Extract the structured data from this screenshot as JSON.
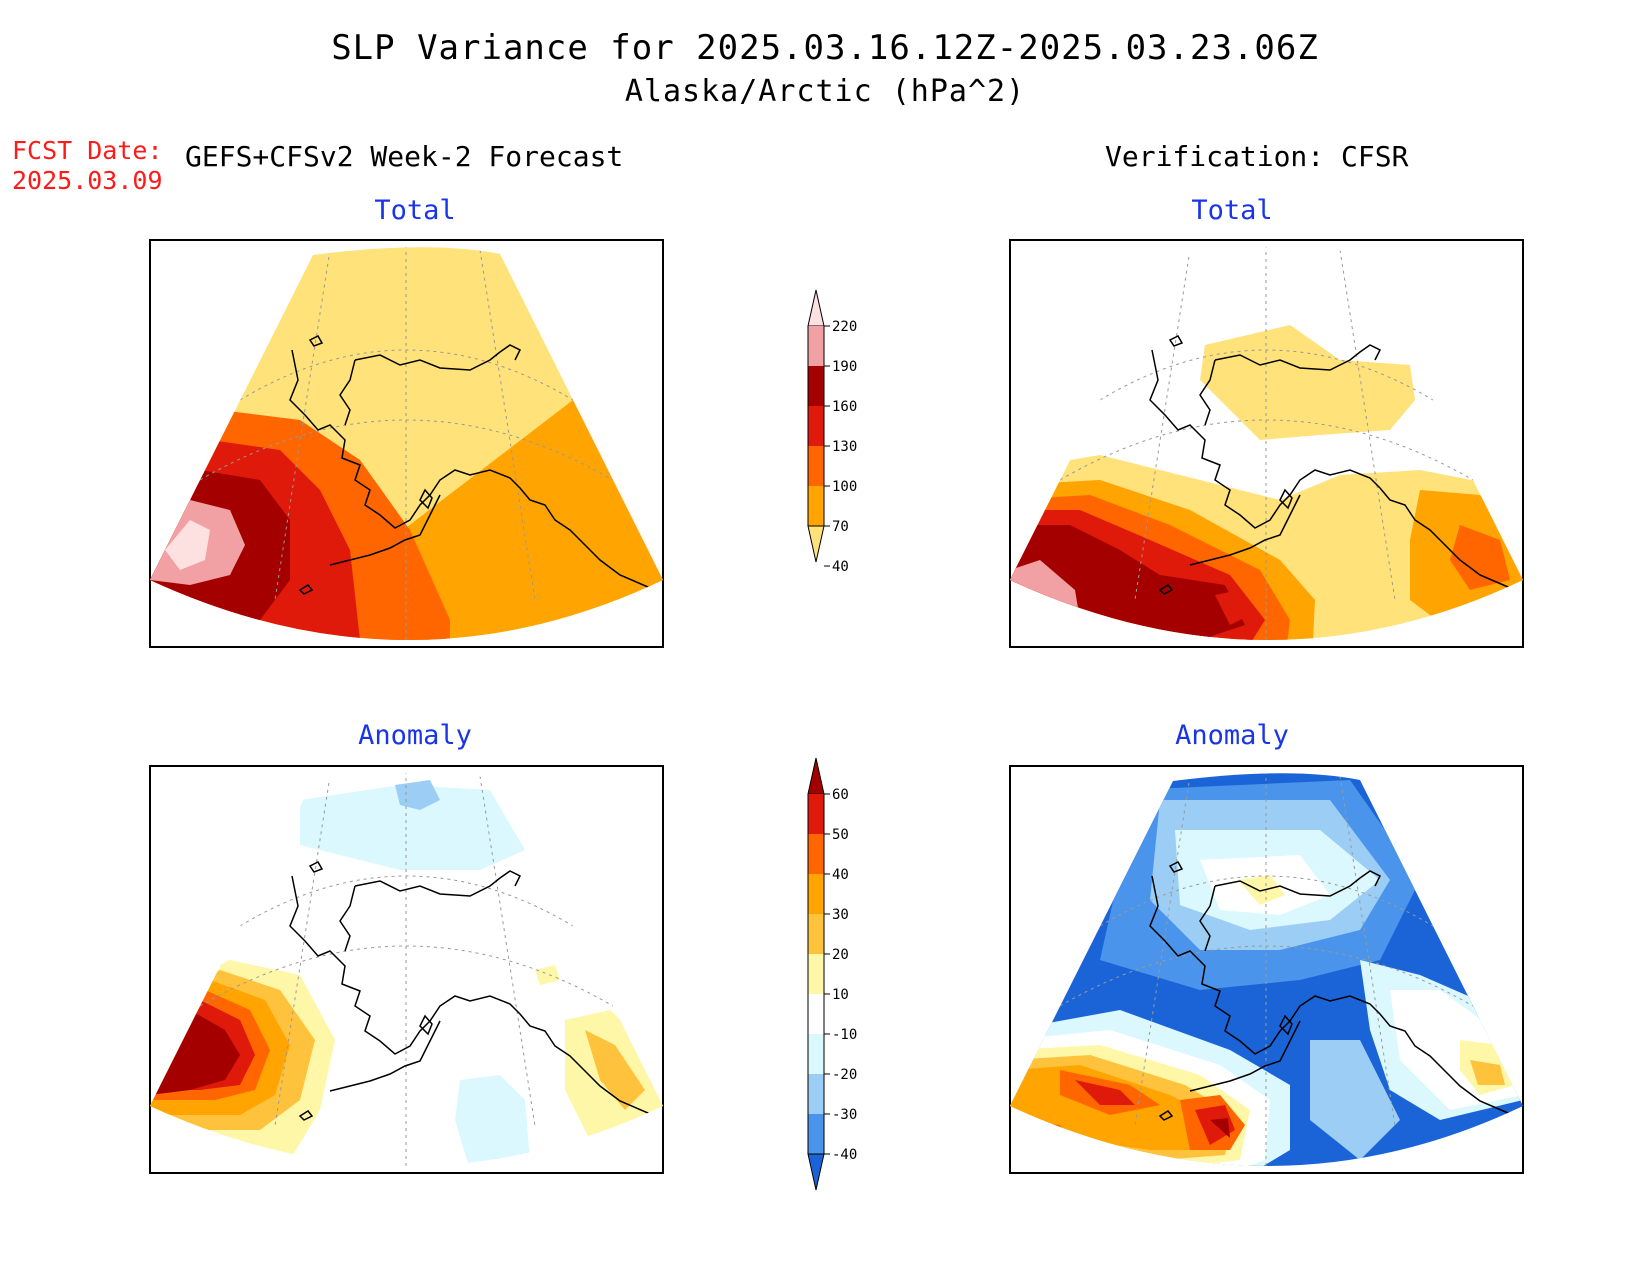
{
  "title": "SLP Variance for 2025.03.16.12Z-2025.03.23.06Z",
  "subtitle": "Alaska/Arctic (hPa^2)",
  "fcst_label": "FCST Date:",
  "fcst_date": "2025.03.09",
  "left_header": "GEFS+CFSv2 Week-2 Forecast",
  "right_header": "Verification: CFSR",
  "panels": {
    "top_left": "Total",
    "top_right": "Total",
    "bottom_left": "Anomaly",
    "bottom_right": "Anomaly"
  },
  "total_colorbar": {
    "levels": [
      "220",
      "190",
      "160",
      "130",
      "100",
      "70",
      "40"
    ],
    "colors": [
      "#fde0e0",
      "#f1a0a3",
      "#a50000",
      "#e01a0a",
      "#ff6600",
      "#ffa400",
      "#ffe27a"
    ]
  },
  "anomaly_colorbar": {
    "levels": [
      "60",
      "50",
      "40",
      "30",
      "20",
      "10",
      "-10",
      "-20",
      "-30",
      "-40"
    ],
    "colors": [
      "#a50000",
      "#e01a0a",
      "#ff6600",
      "#ffa400",
      "#ffc23c",
      "#fff7a8",
      "#ffffff",
      "#dcf8ff",
      "#9bcdf5",
      "#4a95eb",
      "#1a64d8"
    ]
  }
}
